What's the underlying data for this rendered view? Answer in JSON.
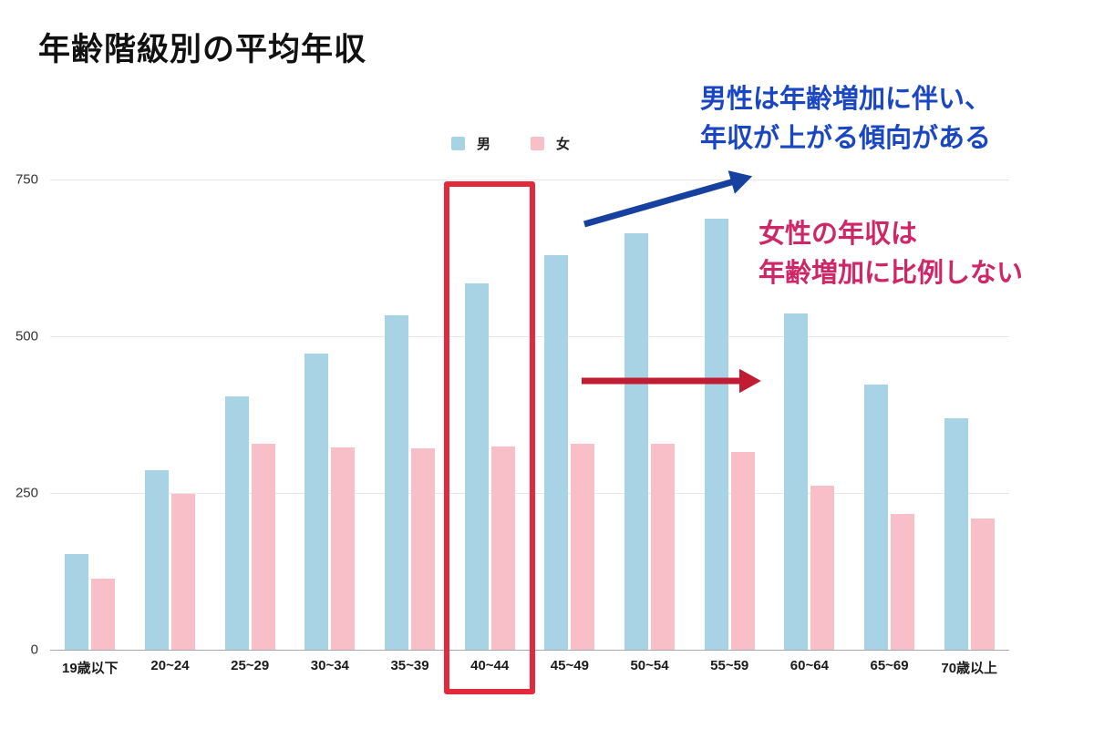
{
  "title": "年齢階級別の平均年収",
  "legend": {
    "male_label": "男",
    "female_label": "女"
  },
  "chart_data": {
    "type": "bar",
    "title": "年齢階級別の平均年収",
    "categories": [
      "19歳以下",
      "20~24",
      "25~29",
      "30~34",
      "35~39",
      "40~44",
      "45~49",
      "50~54",
      "55~59",
      "60~64",
      "65~69",
      "70歳以上"
    ],
    "series": [
      {
        "name": "男",
        "color": "#a7d3e4",
        "values": [
          152,
          287,
          404,
          472,
          533,
          584,
          630,
          664,
          687,
          537,
          423,
          369
        ]
      },
      {
        "name": "女",
        "color": "#f8bfc9",
        "values": [
          113,
          249,
          328,
          322,
          321,
          324,
          328,
          328,
          316,
          262,
          216,
          210
        ]
      }
    ],
    "ylim": [
      0,
      750
    ],
    "yticks": [
      0,
      250,
      500,
      750
    ],
    "grid": true,
    "legend_position": "top-center",
    "xlabel": "",
    "ylabel": ""
  },
  "annotations": {
    "male_note_line1": "男性は年齢増加に伴い、",
    "male_note_line2": "年収が上がる傾向がある",
    "male_note_color": "#1a47c1",
    "male_arrow_color": "#17419f",
    "female_note_line1": "女性の年収は",
    "female_note_line2": "年齢増加に比例しない",
    "female_note_color": "#ce2666",
    "female_arrow_color": "#c01c33",
    "highlight_category": "40~44",
    "highlight_color": "#e12b3c"
  }
}
